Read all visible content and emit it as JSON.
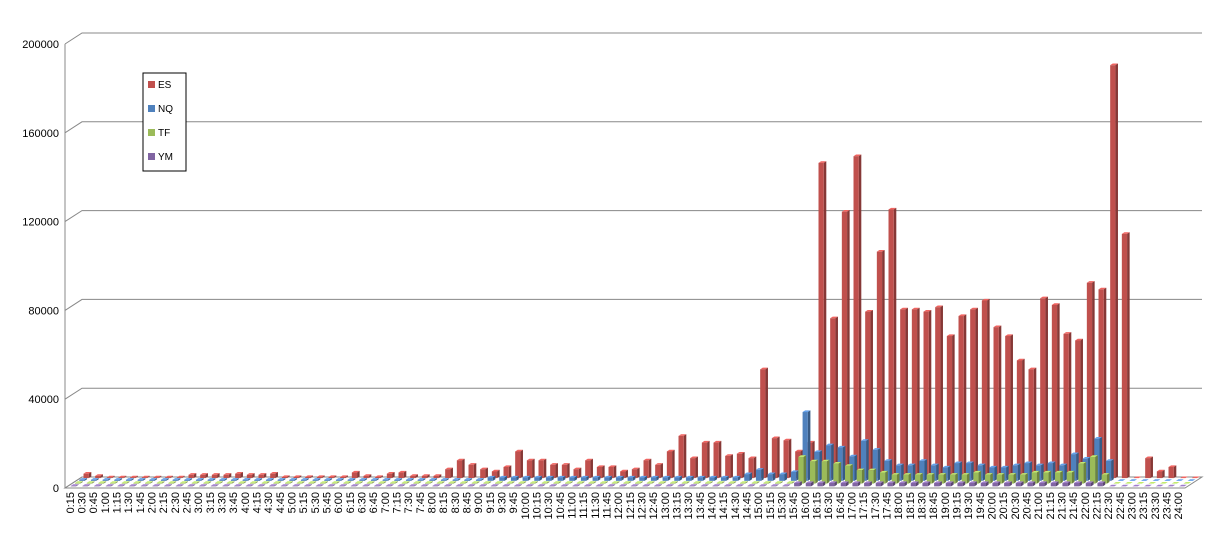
{
  "chart_data": {
    "type": "bar3d",
    "categories": [
      "0:15",
      "0:30",
      "0:45",
      "1:00",
      "1:15",
      "1:30",
      "1:45",
      "2:00",
      "2:15",
      "2:30",
      "2:45",
      "3:00",
      "3:15",
      "3:30",
      "3:45",
      "4:00",
      "4:15",
      "4:30",
      "4:45",
      "5:00",
      "5:15",
      "5:30",
      "5:45",
      "6:00",
      "6:15",
      "6:30",
      "6:45",
      "7:00",
      "7:15",
      "7:30",
      "7:45",
      "8:00",
      "8:15",
      "8:30",
      "8:45",
      "9:00",
      "9:15",
      "9:30",
      "9:45",
      "10:00",
      "10:15",
      "10:30",
      "10:45",
      "11:00",
      "11:15",
      "11:30",
      "11:45",
      "12:00",
      "12:15",
      "12:30",
      "12:45",
      "13:00",
      "13:15",
      "13:30",
      "13:45",
      "14:00",
      "14:15",
      "14:30",
      "14:45",
      "15:00",
      "15:15",
      "15:30",
      "15:45",
      "16:00",
      "16:15",
      "16:30",
      "16:45",
      "17:00",
      "17:15",
      "17:30",
      "17:45",
      "18:00",
      "18:15",
      "18:30",
      "18:45",
      "19:00",
      "19:15",
      "19:30",
      "19:45",
      "20:00",
      "20:15",
      "20:30",
      "20:45",
      "21:00",
      "21:15",
      "21:30",
      "21:45",
      "22:00",
      "22:15",
      "22:30",
      "22:45",
      "23:00",
      "23:15",
      "23:30",
      "23:45",
      "24:00"
    ],
    "series": [
      {
        "name": "YM",
        "color": "#8064a2",
        "values": [
          200,
          200,
          200,
          200,
          200,
          200,
          200,
          200,
          200,
          200,
          200,
          200,
          200,
          200,
          200,
          200,
          200,
          200,
          200,
          200,
          200,
          200,
          200,
          200,
          200,
          200,
          200,
          200,
          200,
          200,
          200,
          200,
          200,
          200,
          200,
          200,
          200,
          200,
          200,
          200,
          200,
          200,
          200,
          200,
          200,
          200,
          200,
          200,
          200,
          200,
          200,
          200,
          200,
          200,
          200,
          200,
          200,
          200,
          200,
          200,
          200,
          200,
          1500,
          1500,
          1500,
          1500,
          1500,
          1500,
          1500,
          1500,
          1500,
          1500,
          1500,
          1500,
          1500,
          1500,
          1500,
          1500,
          1500,
          1500,
          1500,
          1500,
          1500,
          1500,
          1500,
          1500,
          1500,
          1500,
          1500,
          0,
          0,
          0,
          0,
          0,
          0,
          0
        ]
      },
      {
        "name": "TF",
        "color": "#9bbb59",
        "values": [
          300,
          300,
          300,
          300,
          300,
          300,
          300,
          300,
          300,
          300,
          300,
          300,
          300,
          300,
          300,
          300,
          300,
          300,
          300,
          300,
          300,
          300,
          300,
          300,
          300,
          300,
          300,
          300,
          300,
          300,
          300,
          300,
          300,
          300,
          300,
          300,
          300,
          300,
          300,
          300,
          300,
          300,
          300,
          300,
          300,
          300,
          300,
          300,
          300,
          300,
          300,
          300,
          300,
          300,
          300,
          300,
          300,
          300,
          300,
          300,
          300,
          300,
          12000,
          10000,
          10000,
          9000,
          8000,
          6000,
          6000,
          5000,
          4000,
          4000,
          4000,
          4000,
          4000,
          4000,
          4000,
          5000,
          4000,
          4000,
          4000,
          4000,
          5000,
          5000,
          5000,
          5000,
          9000,
          12000,
          4000,
          0,
          0,
          0,
          0,
          0,
          0,
          0
        ]
      },
      {
        "name": "NQ",
        "color": "#4f81bd",
        "values": [
          500,
          500,
          500,
          500,
          500,
          500,
          500,
          500,
          500,
          500,
          500,
          500,
          500,
          500,
          500,
          500,
          500,
          500,
          500,
          500,
          500,
          500,
          500,
          500,
          500,
          500,
          500,
          500,
          500,
          500,
          500,
          500,
          500,
          500,
          500,
          1500,
          1500,
          1500,
          1500,
          1500,
          1500,
          1500,
          1500,
          1500,
          1500,
          1500,
          1500,
          1500,
          1500,
          1500,
          1500,
          1500,
          1500,
          1500,
          1500,
          1500,
          1500,
          3000,
          5000,
          3000,
          3000,
          4000,
          31000,
          13000,
          16000,
          15000,
          11000,
          18000,
          14000,
          9000,
          7000,
          7000,
          9000,
          7000,
          6000,
          8000,
          8000,
          7000,
          6000,
          6000,
          7000,
          8000,
          7000,
          8000,
          7000,
          12000,
          10000,
          19000,
          9000,
          0,
          0,
          0,
          0,
          0,
          0,
          0
        ]
      },
      {
        "name": "ES",
        "color": "#c0504d",
        "values": [
          2000,
          1000,
          300,
          300,
          300,
          300,
          300,
          300,
          300,
          1500,
          1500,
          1500,
          1500,
          2000,
          1500,
          1500,
          2000,
          500,
          500,
          500,
          500,
          500,
          500,
          2500,
          1000,
          500,
          2000,
          2500,
          1000,
          1000,
          1000,
          4000,
          8000,
          6000,
          4000,
          3000,
          5000,
          12000,
          8000,
          8000,
          6000,
          6000,
          4000,
          8000,
          5000,
          5000,
          3000,
          4000,
          8000,
          6000,
          12000,
          19000,
          9000,
          16000,
          16000,
          10000,
          11000,
          9000,
          49000,
          18000,
          17000,
          12000,
          16000,
          142000,
          72000,
          120000,
          145000,
          75000,
          102000,
          121000,
          76000,
          76000,
          75000,
          77000,
          64000,
          73000,
          76000,
          80000,
          68000,
          64000,
          53000,
          49000,
          81000,
          78000,
          65000,
          62000,
          88000,
          85000,
          186000,
          110000,
          0,
          9000,
          3000,
          5000,
          0,
          0
        ]
      }
    ],
    "ylim": [
      0,
      200000
    ],
    "yticks": [
      0,
      40000,
      80000,
      120000,
      160000,
      200000
    ],
    "grid": true,
    "legend": "left"
  }
}
